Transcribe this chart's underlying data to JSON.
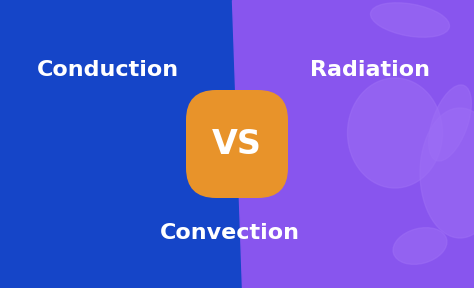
{
  "left_color": "#1545c8",
  "right_color": "#8855ee",
  "right_decor_color": "#9d6ef5",
  "vs_bg_color": "#e8932a",
  "vs_text_color": "#ffffff",
  "text_color": "#ffffff",
  "conduction_text": "Conduction",
  "radiation_text": "Radiation",
  "convection_text": "Convection",
  "vs_text": "VS",
  "label_fontsize": 16,
  "vs_fontsize": 24,
  "fig_width": 4.74,
  "fig_height": 2.88,
  "dpi": 100
}
